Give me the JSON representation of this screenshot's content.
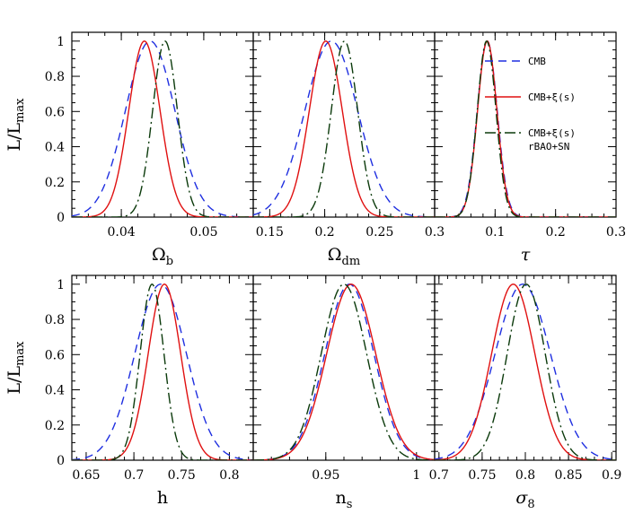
{
  "figure": {
    "ylabel_main": "L/L",
    "ylabel_sub": "max",
    "colors": {
      "cmb": "#1f2fe0",
      "cmb_xi": "#e01010",
      "cmb_xi_bao_sn": "#0b3a0b"
    },
    "legend": [
      {
        "series": "cmb",
        "label_lines": [
          "CMB"
        ]
      },
      {
        "series": "cmb_xi",
        "label_lines": [
          "CMB+ξ(s)"
        ]
      },
      {
        "series": "cmb_xi_bao_sn",
        "label_lines": [
          "CMB+ξ(s)",
          "rBAO+SN"
        ]
      }
    ],
    "legend_panel": 2
  },
  "chart_data": [
    {
      "type": "line",
      "xlabel": "Ω",
      "xlabel_sub": "b",
      "xlim": [
        0.034,
        0.056
      ],
      "ylim": [
        0,
        1.05
      ],
      "xticks": [
        0.04,
        0.05
      ],
      "xtick_labels": [
        "0.04",
        "0.05"
      ],
      "yticks": [
        0,
        0.2,
        0.4,
        0.6,
        0.8,
        1
      ],
      "series": [
        {
          "key": "cmb",
          "peak": 0.0435,
          "sigma": 0.003
        },
        {
          "key": "cmb_xi",
          "peak": 0.0428,
          "sigma": 0.0019
        },
        {
          "key": "cmb_xi_bao_sn",
          "peak": 0.0453,
          "sigma": 0.0015
        }
      ]
    },
    {
      "type": "line",
      "xlabel": "Ω",
      "xlabel_sub": "dm",
      "xlim": [
        0.135,
        0.3
      ],
      "ylim": [
        0,
        1.05
      ],
      "xticks": [
        0.15,
        0.2,
        0.25,
        0.3
      ],
      "xtick_labels": [
        "0.15",
        "0.2",
        "0.25",
        "0.3"
      ],
      "yticks": [
        0,
        0.2,
        0.4,
        0.6,
        0.8,
        1
      ],
      "series": [
        {
          "key": "cmb",
          "peak": 0.206,
          "sigma": 0.024
        },
        {
          "key": "cmb_xi",
          "peak": 0.201,
          "sigma": 0.015
        },
        {
          "key": "cmb_xi_bao_sn",
          "peak": 0.218,
          "sigma": 0.012
        }
      ]
    },
    {
      "type": "line",
      "xlabel": "τ",
      "xlabel_sub": "",
      "xlim": [
        0,
        0.3
      ],
      "ylim": [
        0,
        1.05
      ],
      "xticks": [
        0,
        0.1,
        0.2,
        0.3
      ],
      "xtick_labels": [
        "",
        "0.1",
        "0.2",
        "0.3"
      ],
      "yticks": [
        0,
        0.2,
        0.4,
        0.6,
        0.8,
        1
      ],
      "series": [
        {
          "key": "cmb",
          "peak": 0.087,
          "sigma": 0.0165
        },
        {
          "key": "cmb_xi",
          "peak": 0.087,
          "sigma": 0.016
        },
        {
          "key": "cmb_xi_bao_sn",
          "peak": 0.086,
          "sigma": 0.0155
        }
      ]
    },
    {
      "type": "line",
      "xlabel": "h",
      "xlabel_sub": "",
      "xlim": [
        0.635,
        0.825
      ],
      "ylim": [
        0,
        1.05
      ],
      "xticks": [
        0.65,
        0.7,
        0.75,
        0.8
      ],
      "xtick_labels": [
        "0.65",
        "0.7",
        "0.75",
        "0.8"
      ],
      "yticks": [
        0,
        0.2,
        0.4,
        0.6,
        0.8,
        1
      ],
      "series": [
        {
          "key": "cmb",
          "peak": 0.728,
          "sigma": 0.027
        },
        {
          "key": "cmb_xi",
          "peak": 0.732,
          "sigma": 0.017
        },
        {
          "key": "cmb_xi_bao_sn",
          "peak": 0.719,
          "sigma": 0.0125
        }
      ]
    },
    {
      "type": "line",
      "xlabel": "n",
      "xlabel_sub": "s",
      "xlim": [
        0.91,
        1.01
      ],
      "ylim": [
        0,
        1.05
      ],
      "xticks": [
        0.95,
        1.0
      ],
      "xtick_labels": [
        "0.95",
        "1"
      ],
      "yticks": [
        0,
        0.2,
        0.4,
        0.6,
        0.8,
        1
      ],
      "series": [
        {
          "key": "cmb",
          "peak": 0.963,
          "sigma": 0.0135
        },
        {
          "key": "cmb_xi",
          "peak": 0.964,
          "sigma": 0.0135
        },
        {
          "key": "cmb_xi_bao_sn",
          "peak": 0.96,
          "sigma": 0.0125
        }
      ]
    },
    {
      "type": "line",
      "xlabel": "σ",
      "xlabel_sub": "8",
      "xlim": [
        0.695,
        0.905
      ],
      "ylim": [
        0,
        1.05
      ],
      "xticks": [
        0.7,
        0.75,
        0.8,
        0.85,
        0.9
      ],
      "xtick_labels": [
        "0.7",
        "0.75",
        "0.8",
        "0.85",
        "0.9"
      ],
      "yticks": [
        0,
        0.2,
        0.4,
        0.6,
        0.8,
        1
      ],
      "series": [
        {
          "key": "cmb",
          "peak": 0.797,
          "sigma": 0.032
        },
        {
          "key": "cmb_xi",
          "peak": 0.786,
          "sigma": 0.025
        },
        {
          "key": "cmb_xi_bao_sn",
          "peak": 0.801,
          "sigma": 0.022
        }
      ]
    }
  ]
}
